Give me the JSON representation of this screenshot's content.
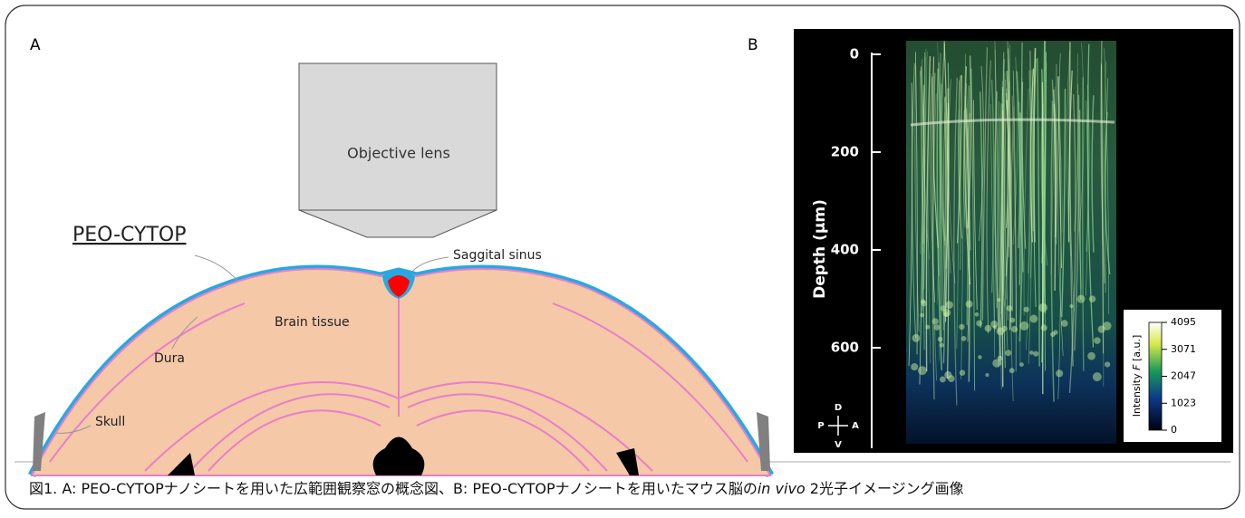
{
  "panel_a": {
    "label": "A",
    "objective": "Objective lens",
    "window": "PEO-CYTOP",
    "sinus": "Saggital sinus",
    "tissue": "Brain tissue",
    "dura": "Dura",
    "skull": "Skull"
  },
  "panel_b": {
    "label": "B",
    "y_axis": {
      "label": "Depth (µm)",
      "lim": [
        0,
        800
      ],
      "ticks": [
        0,
        200,
        400,
        600
      ]
    },
    "colorbar": {
      "label_prefix": "Intensity ",
      "label_var": "F",
      "label_suffix": " [a.u.]",
      "lim": [
        0,
        4095
      ],
      "ticks": [
        0,
        1023,
        2047,
        3071,
        4095
      ]
    },
    "orientation": {
      "dorsal": "D",
      "posterior": "P",
      "anterior": "A",
      "ventral": "V"
    }
  },
  "caption": {
    "text": "図1.  A: PEO-CYTOPナノシートを用いた広範囲観察窓の概念図、B: PEO-CYTOPナノシートを用いたマウス脳の",
    "italic": "in vivo",
    "end": " 2光子イメージング画像"
  }
}
